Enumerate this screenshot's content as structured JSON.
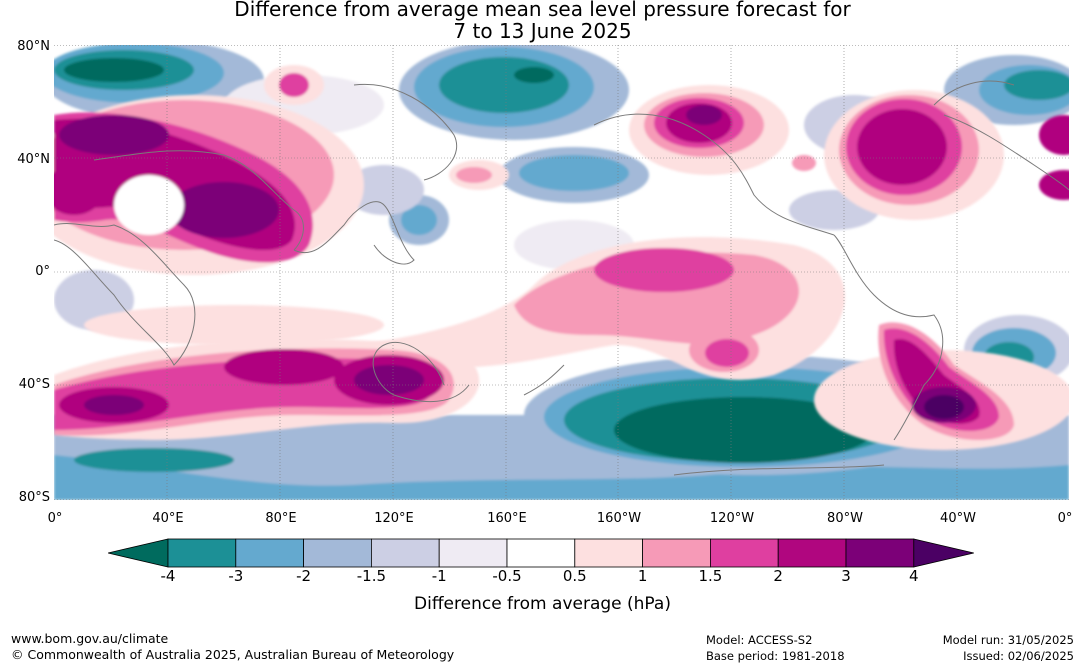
{
  "title": {
    "line1": "Difference from average mean sea level pressure forecast for",
    "line2": "7 to 13 June 2025"
  },
  "axes": {
    "lat_labels": [
      "80°N",
      "40°N",
      "0°",
      "40°S",
      "80°S"
    ],
    "lon_labels": [
      "0°",
      "40°E",
      "80°E",
      "120°E",
      "160°E",
      "160°W",
      "120°W",
      "80°W",
      "40°W",
      "0°"
    ]
  },
  "colorbar": {
    "label": "Difference from average (hPa)",
    "ticks": [
      "-4",
      "-3",
      "-2",
      "-1.5",
      "-1",
      "-0.5",
      "0.5",
      "1",
      "1.5",
      "2",
      "3",
      "4"
    ],
    "colors": [
      "#006b5e",
      "#1c9096",
      "#64a9cf",
      "#a3b9d8",
      "#cccfe4",
      "#efebf3",
      "#ffffff",
      "#fde0e0",
      "#f69ab7",
      "#df3fa0",
      "#b0067f",
      "#7c0078",
      "#4b0064"
    ]
  },
  "footer": {
    "url": "www.bom.gov.au/climate",
    "copyright": "© Commonwealth of Australia 2025, Australian Bureau of Meteorology",
    "model": "Model: ACCESS-S2",
    "base_period": "Base period: 1981-2018",
    "model_run": "Model run: 31/05/2025",
    "issued": "Issued: 02/06/2025"
  }
}
